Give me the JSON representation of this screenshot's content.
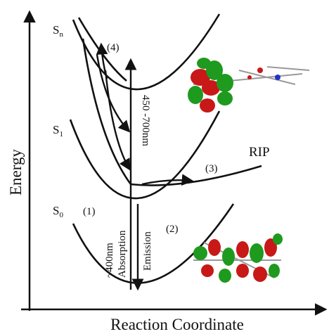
{
  "axes": {
    "y_label": "Energy",
    "x_label": "Reaction Coordinate"
  },
  "states": [
    {
      "symbol": "S",
      "subscript": "n"
    },
    {
      "symbol": "S",
      "subscript": "1"
    },
    {
      "symbol": "S",
      "subscript": "0"
    }
  ],
  "steps": [
    "(1)",
    "(2)",
    "(3)",
    "(4)"
  ],
  "rip": "RIP",
  "transitions": {
    "absorption_wavelength": "~400nm",
    "absorption": "Absorption",
    "emission": "Emission",
    "emission_range": "450 -700nm"
  }
}
